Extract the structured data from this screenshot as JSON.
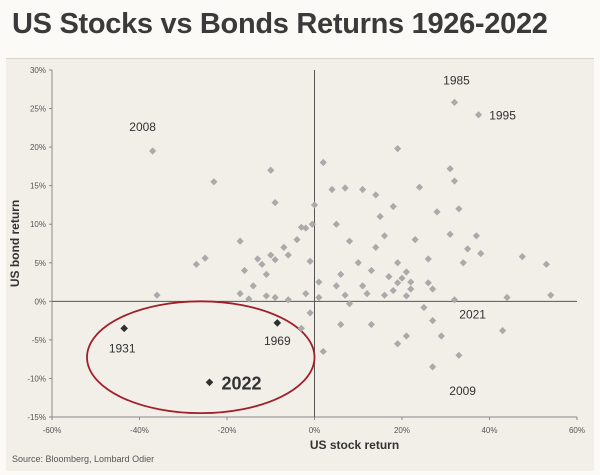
{
  "title": "US Stocks vs Bonds Returns 1926-2022",
  "source": "Source: Bloomberg, Lombard Odier",
  "colors": {
    "points": "#aaaaaa",
    "highlight": "#2f2f2f",
    "ellipse": "#a0202a",
    "axis": "#555555"
  },
  "chart_data": {
    "type": "scatter",
    "title": "US Stocks vs Bonds Returns 1926-2022",
    "xlabel": "US stock return",
    "ylabel": "US bond return",
    "xlim": [
      -60,
      60
    ],
    "ylim": [
      -15,
      30
    ],
    "x_ticks": [
      -60,
      -40,
      -20,
      0,
      20,
      40,
      60
    ],
    "y_ticks": [
      -15,
      -10,
      -5,
      0,
      5,
      10,
      15,
      20,
      25,
      30
    ],
    "x_tick_labels": [
      "-60%",
      "-40%",
      "-20%",
      "0%",
      "20%",
      "40%",
      "60%"
    ],
    "y_tick_labels": [
      "-15%",
      "-10%",
      "-5%",
      "0%",
      "5%",
      "10%",
      "15%",
      "20%",
      "25%",
      "30%"
    ],
    "grid": false,
    "series": [
      {
        "values": [
          [
            32,
            25.8
          ],
          [
            37.5,
            24.2
          ],
          [
            -37,
            19.5
          ],
          [
            19,
            19.8
          ],
          [
            2,
            18
          ],
          [
            -10,
            17
          ],
          [
            31,
            17.2
          ],
          [
            -23,
            15.5
          ],
          [
            7,
            14.7
          ],
          [
            4,
            14.5
          ],
          [
            11,
            14.5
          ],
          [
            14,
            13.8
          ],
          [
            32,
            15.6
          ],
          [
            24,
            14.8
          ],
          [
            -9,
            12.8
          ],
          [
            0,
            12.5
          ],
          [
            18,
            12.3
          ],
          [
            15,
            11
          ],
          [
            28,
            11.6
          ],
          [
            33,
            12
          ],
          [
            -0.5,
            10
          ],
          [
            -2,
            9.5
          ],
          [
            5,
            10
          ],
          [
            16,
            8.5
          ],
          [
            31,
            8.7
          ],
          [
            37,
            8.5
          ],
          [
            -17,
            7.8
          ],
          [
            -4,
            8
          ],
          [
            8,
            7.8
          ],
          [
            23,
            8
          ],
          [
            -6,
            6
          ],
          [
            -10,
            6
          ],
          [
            14,
            7
          ],
          [
            35,
            6.8
          ],
          [
            38,
            6.2
          ],
          [
            -13,
            5.5
          ],
          [
            -12,
            4.8
          ],
          [
            -9,
            5.4
          ],
          [
            -1,
            5.2
          ],
          [
            10,
            5
          ],
          [
            19,
            5
          ],
          [
            26,
            5.5
          ],
          [
            34,
            5
          ],
          [
            47.5,
            5.8
          ],
          [
            -27,
            4.8
          ],
          [
            -25,
            5.6
          ],
          [
            -16,
            4
          ],
          [
            -11,
            3.5
          ],
          [
            6,
            3.5
          ],
          [
            13,
            4
          ],
          [
            17,
            3.2
          ],
          [
            20,
            3
          ],
          [
            21,
            3.8
          ],
          [
            -14,
            2
          ],
          [
            1,
            2.5
          ],
          [
            5,
            2
          ],
          [
            11,
            2
          ],
          [
            19,
            2.4
          ],
          [
            22,
            2.5
          ],
          [
            26,
            2.4
          ],
          [
            -17,
            1
          ],
          [
            -11,
            0.7
          ],
          [
            -2,
            1
          ],
          [
            7,
            0.8
          ],
          [
            12,
            1
          ],
          [
            16,
            0.8
          ],
          [
            18,
            1.4
          ],
          [
            22,
            1.6
          ],
          [
            27,
            1.6
          ],
          [
            -36,
            0.8
          ],
          [
            -15,
            0.3
          ],
          [
            -6,
            0.2
          ],
          [
            -9,
            0.5
          ],
          [
            1,
            0.5
          ],
          [
            8,
            -0.3
          ],
          [
            21,
            0.7
          ],
          [
            25,
            -0.8
          ],
          [
            32,
            0.2
          ],
          [
            44,
            0.5
          ],
          [
            54,
            0.8
          ],
          [
            6,
            -3
          ],
          [
            13,
            -3
          ],
          [
            27,
            -2.5
          ],
          [
            21,
            -4.5
          ],
          [
            29,
            -4.5
          ],
          [
            43,
            -3.8
          ],
          [
            19,
            -5.5
          ],
          [
            33,
            -7
          ],
          [
            27,
            -8.5
          ],
          [
            2,
            -6.5
          ],
          [
            -3,
            -3.5
          ],
          [
            -1,
            -1.5
          ],
          [
            53,
            4.8
          ],
          [
            -7,
            7
          ],
          [
            -3,
            9.6
          ]
        ]
      },
      {
        "values": [
          [
            -43.5,
            -3.5
          ],
          [
            -8.5,
            -2.8
          ],
          [
            -24,
            -10.5
          ]
        ]
      }
    ],
    "annotations": [
      {
        "text": "2008",
        "x": -37,
        "y": 19.5
      },
      {
        "text": "1985",
        "x": 32,
        "y": 25.8
      },
      {
        "text": "1995",
        "x": 37.5,
        "y": 24.2
      },
      {
        "text": "1931",
        "x": -43.5,
        "y": -3.5
      },
      {
        "text": "1969",
        "x": -8.5,
        "y": -2.8
      },
      {
        "text": "2022",
        "x": -24,
        "y": -10.5
      },
      {
        "text": "2021",
        "x": 27,
        "y": -2.5
      },
      {
        "text": "2009",
        "x": 27,
        "y": -8.5
      }
    ],
    "highlight_ellipse": {
      "x_range": [
        -52,
        0
      ],
      "y_range": [
        -14.5,
        0
      ]
    }
  }
}
